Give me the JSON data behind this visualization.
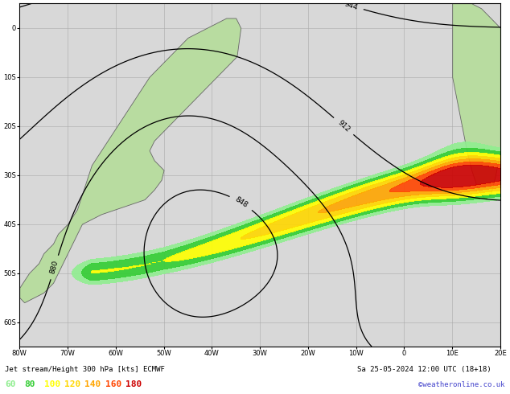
{
  "title": "Jet stream/Height 300 hPa [kts] ECMWF",
  "date_str": "Sa 25-05-2024 12:00 UTC (18+18)",
  "credit": "©weatheronline.co.uk",
  "legend_values": [
    60,
    80,
    100,
    120,
    140,
    160,
    180
  ],
  "legend_colors": [
    "#90ee90",
    "#32cd32",
    "#ffff00",
    "#ffd700",
    "#ffa500",
    "#ff4500",
    "#cc0000"
  ],
  "land_color": "#b8dca0",
  "ocean_color": "#d8d8d8",
  "grid_color": "#aaaaaa",
  "fig_width": 6.34,
  "fig_height": 4.9,
  "lon_min": -80,
  "lon_max": 20,
  "lat_min": -65,
  "lat_max": 5,
  "jet_fill_colors": [
    "#90ee90",
    "#32cd32",
    "#ffff00",
    "#ffd700",
    "#ffa500",
    "#ff4500",
    "#cc0000"
  ],
  "jet_levels": [
    60,
    80,
    100,
    120,
    140,
    160,
    180,
    220
  ]
}
